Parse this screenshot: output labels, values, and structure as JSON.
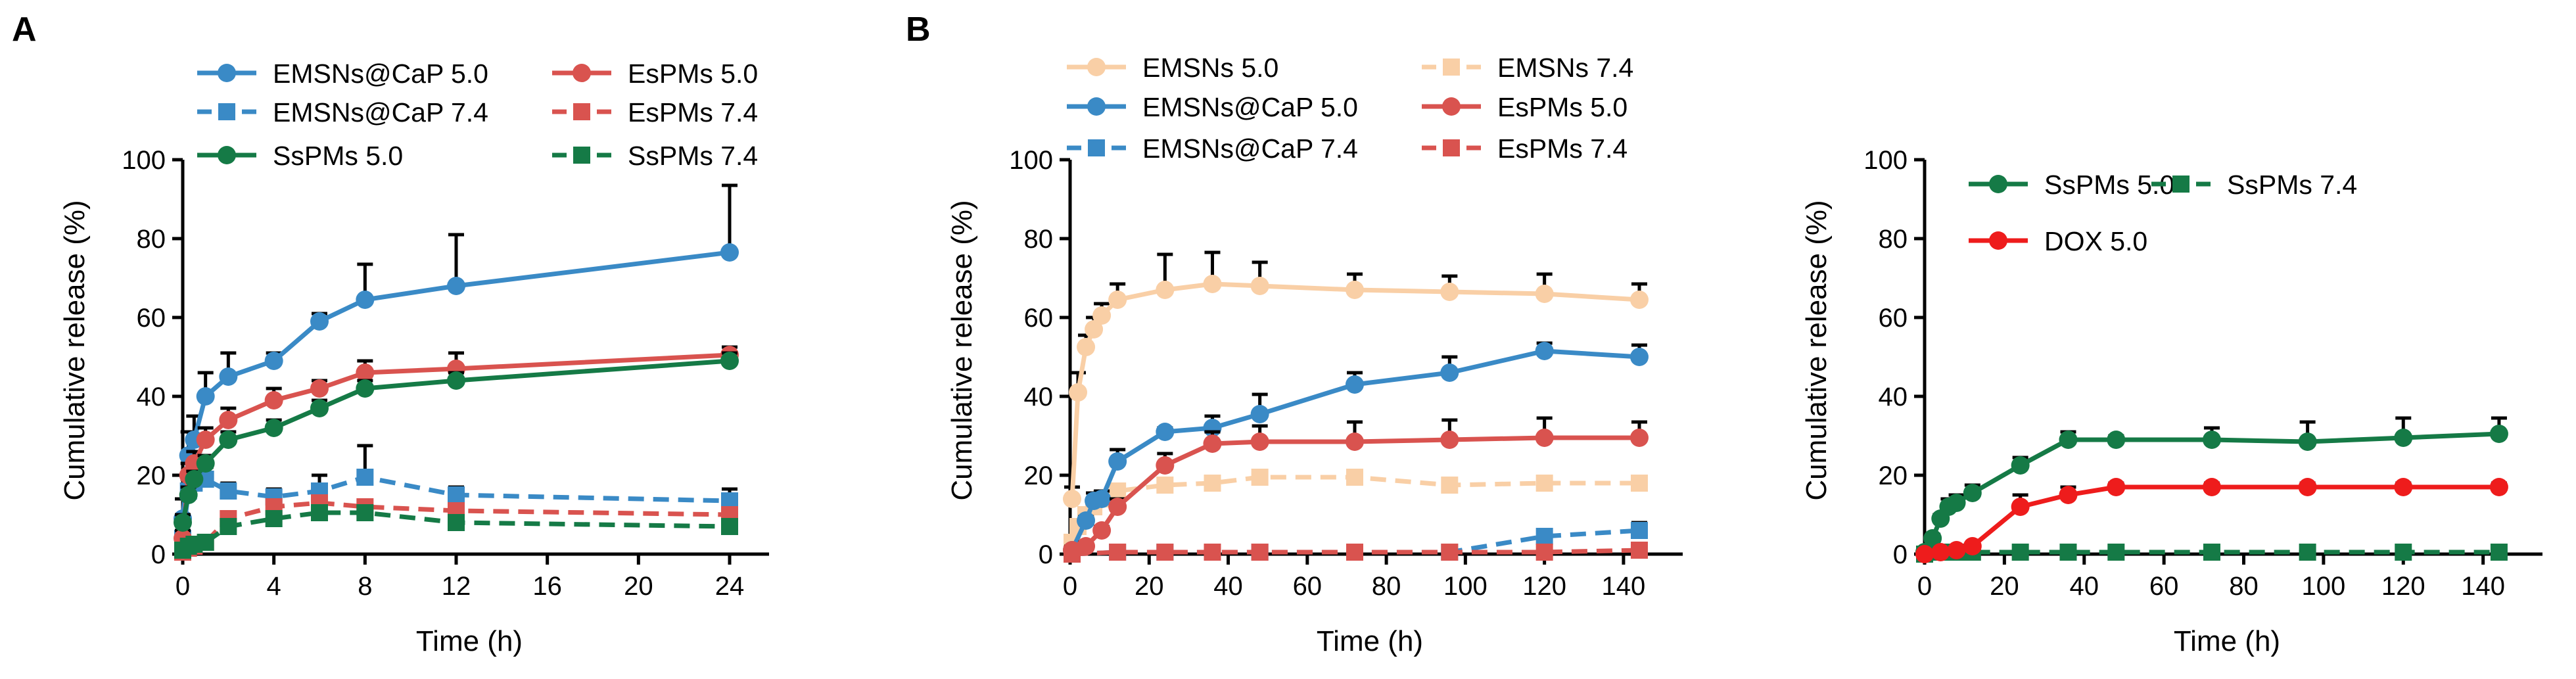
{
  "panel_letters": [
    "A",
    "B"
  ],
  "chart_data": [
    {
      "id": "A",
      "type": "line",
      "xlabel": "Time (h)",
      "ylabel": "Cumulative release (%)",
      "xlim": [
        0,
        24
      ],
      "ylim": [
        0,
        100
      ],
      "xticks": [
        0,
        4,
        8,
        12,
        16,
        20,
        24
      ],
      "yticks": [
        0,
        20,
        40,
        60,
        80,
        100
      ],
      "grid": false,
      "legend": "top, two columns",
      "series": [
        {
          "name": "EMSNs@CaP 5.0",
          "color": "#3a8ac6",
          "dash": false,
          "marker": "circle",
          "x": [
            0,
            0.25,
            0.5,
            1,
            2,
            4,
            6,
            8,
            12,
            24
          ],
          "y": [
            9,
            25,
            29,
            40,
            45,
            49,
            59,
            64.5,
            68,
            76.5
          ],
          "err": [
            5,
            6,
            6,
            6,
            6,
            2,
            2,
            9,
            13,
            17
          ]
        },
        {
          "name": "EMSNs@CaP 7.4",
          "color": "#3a8ac6",
          "dash": true,
          "marker": "square",
          "x": [
            0,
            0.25,
            0.5,
            1,
            2,
            4,
            6,
            8,
            12,
            24
          ],
          "y": [
            4,
            16,
            18,
            19,
            16,
            14.5,
            16,
            19.5,
            15,
            13.5
          ],
          "err": [
            2,
            3,
            4,
            3,
            2,
            2,
            4,
            8,
            2,
            3
          ]
        },
        {
          "name": "EsPMs 5.0",
          "color": "#d9534f",
          "dash": false,
          "marker": "circle",
          "x": [
            0,
            0.25,
            0.5,
            1,
            2,
            4,
            6,
            8,
            12,
            24
          ],
          "y": [
            4,
            20,
            23,
            29,
            34,
            39,
            42,
            46,
            47,
            50.5
          ],
          "err": [
            2,
            3,
            3,
            3,
            3,
            3,
            2,
            3,
            4,
            2
          ]
        },
        {
          "name": "EsPMs 7.4",
          "color": "#d9534f",
          "dash": true,
          "marker": "square",
          "x": [
            0,
            0.25,
            0.5,
            1,
            2,
            4,
            6,
            8,
            12,
            24
          ],
          "y": [
            0.5,
            1.5,
            2,
            3,
            9,
            12,
            13,
            12,
            11,
            10
          ],
          "err": [
            1,
            1,
            1,
            1,
            1,
            1,
            1,
            1,
            1,
            1
          ]
        },
        {
          "name": "SsPMs 5.0",
          "color": "#157a46",
          "dash": false,
          "marker": "circle",
          "x": [
            0,
            0.25,
            0.5,
            1,
            2,
            4,
            6,
            8,
            12,
            24
          ],
          "y": [
            8,
            15,
            19,
            23,
            29,
            32,
            37,
            42,
            44,
            49
          ],
          "err": [
            2,
            2,
            2,
            2,
            2,
            2,
            2,
            2,
            2,
            2
          ]
        },
        {
          "name": "SsPMs 7.4",
          "color": "#157a46",
          "dash": true,
          "marker": "square",
          "x": [
            0,
            0.25,
            0.5,
            1,
            2,
            4,
            6,
            8,
            12,
            24
          ],
          "y": [
            1,
            2,
            2.5,
            3,
            7,
            9,
            10.5,
            10.5,
            8,
            7
          ],
          "err": [
            1,
            1,
            1,
            1,
            1,
            1,
            1,
            1,
            1,
            1
          ]
        }
      ]
    },
    {
      "id": "B-left",
      "type": "line",
      "xlabel": "Time (h)",
      "ylabel": "Cumulative release (%)",
      "xlim": [
        0,
        145
      ],
      "ylim": [
        0,
        100
      ],
      "xticks": [
        0,
        20,
        40,
        60,
        80,
        100,
        120,
        140
      ],
      "yticks": [
        0,
        20,
        40,
        60,
        80,
        100
      ],
      "grid": false,
      "legend": "top, two columns",
      "series": [
        {
          "name": "EMSNs 5.0",
          "color": "#f9cfa6",
          "dash": false,
          "marker": "circle",
          "x": [
            0.5,
            2,
            4,
            6,
            8,
            12,
            24,
            36,
            48,
            72,
            96,
            120,
            144
          ],
          "y": [
            14,
            41,
            52.5,
            57,
            60.5,
            64.5,
            67,
            68.5,
            68,
            67,
            66.5,
            66,
            64.5
          ],
          "err": [
            3,
            5,
            3,
            3,
            3,
            4,
            9,
            8,
            6,
            4,
            4,
            5,
            4
          ]
        },
        {
          "name": "EMSNs 7.4",
          "color": "#f9cfa6",
          "dash": true,
          "marker": "square",
          "x": [
            0.5,
            2,
            4,
            6,
            8,
            12,
            24,
            36,
            48,
            72,
            96,
            120,
            144
          ],
          "y": [
            3,
            7,
            10,
            12,
            14,
            16,
            17.5,
            18,
            19.5,
            19.5,
            17.5,
            18,
            18
          ],
          "err": [
            1,
            1,
            1,
            1,
            1,
            1,
            1,
            1,
            1,
            1,
            1,
            1,
            1
          ]
        },
        {
          "name": "EMSNs@CaP 5.0",
          "color": "#3a8ac6",
          "dash": false,
          "marker": "circle",
          "x": [
            0.5,
            4,
            6,
            8,
            12,
            24,
            36,
            48,
            72,
            96,
            120,
            144
          ],
          "y": [
            1,
            8.5,
            13.5,
            14,
            23.5,
            31,
            32,
            35.5,
            43,
            46,
            51.5,
            50
          ],
          "err": [
            1,
            1,
            2,
            2,
            3,
            1,
            3,
            5,
            3,
            4,
            2,
            3
          ]
        },
        {
          "name": "EMSNs@CaP 7.4",
          "color": "#3a8ac6",
          "dash": true,
          "marker": "square",
          "x": [
            0.5,
            12,
            24,
            36,
            48,
            72,
            96,
            120,
            144
          ],
          "y": [
            0,
            0.5,
            0.5,
            0.5,
            0.5,
            0.5,
            0.5,
            4.5,
            6
          ],
          "err": [
            0.5,
            0.5,
            0.5,
            0.5,
            0.5,
            0.5,
            0.5,
            1.5,
            2
          ]
        },
        {
          "name": "EsPMs 5.0",
          "color": "#d9534f",
          "dash": false,
          "marker": "circle",
          "x": [
            0.5,
            4,
            8,
            12,
            24,
            36,
            48,
            72,
            96,
            120,
            144
          ],
          "y": [
            1,
            2,
            6,
            12,
            22.5,
            28,
            28.5,
            28.5,
            29,
            29.5,
            29.5
          ],
          "err": [
            1,
            1,
            1,
            2,
            3,
            3,
            4,
            5,
            5,
            5,
            4
          ]
        },
        {
          "name": "EsPMs 7.4",
          "color": "#d9534f",
          "dash": true,
          "marker": "square",
          "x": [
            0.5,
            12,
            24,
            36,
            48,
            72,
            96,
            120,
            144
          ],
          "y": [
            0,
            0.5,
            0.5,
            0.5,
            0.5,
            0.5,
            0.5,
            0.5,
            1
          ],
          "err": [
            0.5,
            0.5,
            0.5,
            0.5,
            0.5,
            0.5,
            0.5,
            0.5,
            0.5
          ]
        }
      ]
    },
    {
      "id": "B-right",
      "type": "line",
      "xlabel": "Time (h)",
      "ylabel": "Cumulative release (%)",
      "xlim": [
        0,
        145
      ],
      "ylim": [
        0,
        100
      ],
      "xticks": [
        0,
        20,
        40,
        60,
        80,
        100,
        120,
        140
      ],
      "yticks": [
        0,
        20,
        40,
        60,
        80,
        100
      ],
      "grid": false,
      "legend": "inside, top",
      "series": [
        {
          "name": "SsPMs 5.0",
          "color": "#157a46",
          "dash": false,
          "marker": "circle",
          "x": [
            0,
            2,
            4,
            6,
            8,
            12,
            24,
            36,
            48,
            72,
            96,
            120,
            144
          ],
          "y": [
            0.5,
            4,
            9,
            12,
            13,
            15.5,
            22.5,
            29,
            29,
            29,
            28.5,
            29.5,
            30.5
          ],
          "err": [
            0.5,
            1,
            1,
            2,
            2,
            2,
            2,
            2,
            1,
            3,
            5,
            5,
            4
          ]
        },
        {
          "name": "SsPMs 7.4",
          "color": "#157a46",
          "dash": true,
          "marker": "square",
          "x": [
            0,
            2,
            4,
            6,
            8,
            12,
            24,
            36,
            48,
            72,
            96,
            120,
            144
          ],
          "y": [
            0,
            0.5,
            0.5,
            0.5,
            0.5,
            0.5,
            0.5,
            0.5,
            0.5,
            0.5,
            0.5,
            0.5,
            0.5
          ],
          "err": [
            0.3,
            0.3,
            0.3,
            0.3,
            0.3,
            0.3,
            0.3,
            0.3,
            0.3,
            0.3,
            0.3,
            0.3,
            0.3
          ]
        },
        {
          "name": "DOX 5.0",
          "color": "#ee1c1c",
          "dash": false,
          "marker": "circle",
          "x": [
            0,
            4,
            8,
            12,
            24,
            36,
            48,
            72,
            96,
            120,
            144
          ],
          "y": [
            0,
            0.5,
            1,
            2,
            12,
            15,
            17,
            17,
            17,
            17,
            17
          ],
          "err": [
            0.3,
            0.3,
            0.3,
            0.5,
            3,
            2,
            1,
            1,
            1,
            1,
            1
          ]
        }
      ]
    }
  ]
}
